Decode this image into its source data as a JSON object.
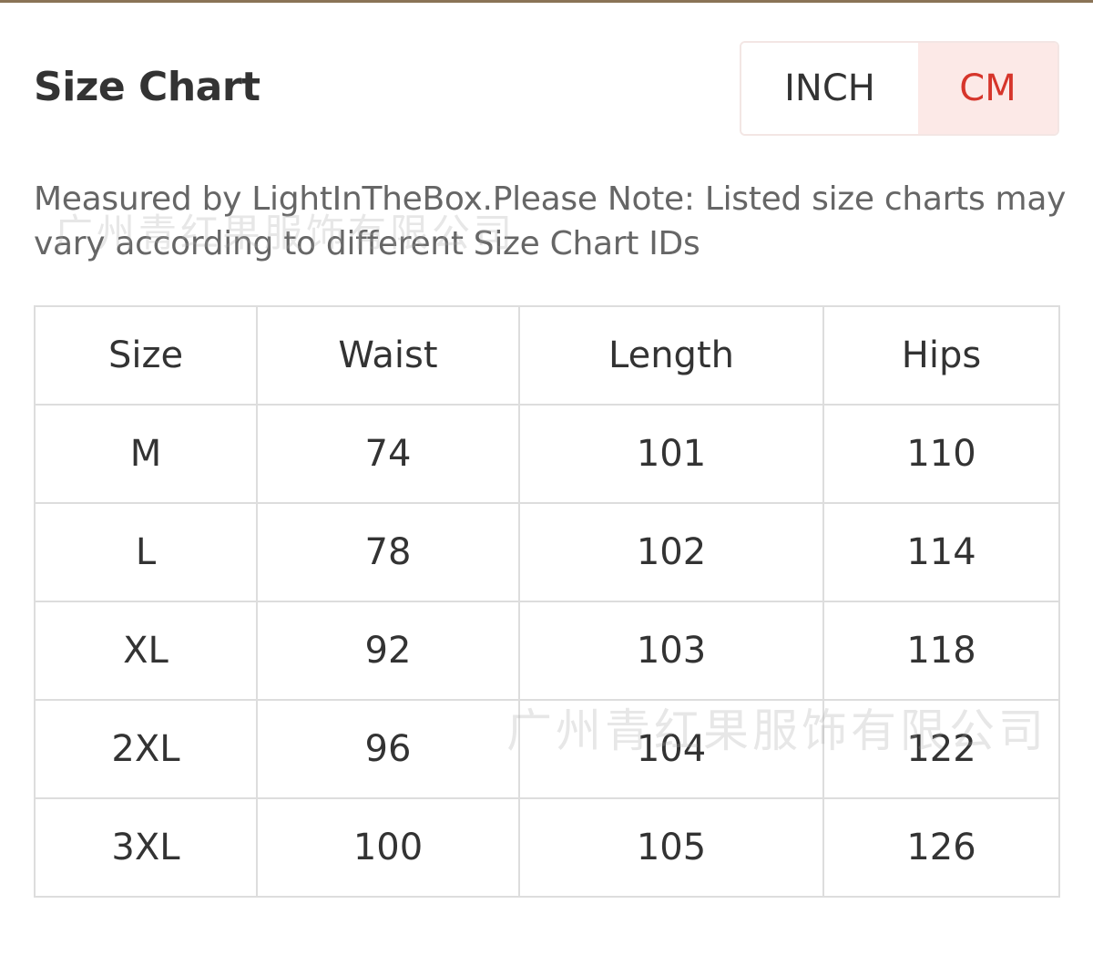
{
  "header": {
    "title": "Size Chart"
  },
  "unit_toggle": {
    "options": [
      "INCH",
      "CM"
    ],
    "selected": "CM",
    "accent": "#d6352b"
  },
  "note": "Measured by LightInTheBox.Please Note: Listed size charts may vary according to different Size Chart IDs",
  "watermark": "广州青红果服饰有限公司",
  "table": {
    "headers": [
      "Size",
      "Waist",
      "Length",
      "Hips"
    ],
    "rows": [
      [
        "M",
        "74",
        "101",
        "110"
      ],
      [
        "L",
        "78",
        "102",
        "114"
      ],
      [
        "XL",
        "92",
        "103",
        "118"
      ],
      [
        "2XL",
        "96",
        "104",
        "122"
      ],
      [
        "3XL",
        "100",
        "105",
        "126"
      ]
    ]
  }
}
